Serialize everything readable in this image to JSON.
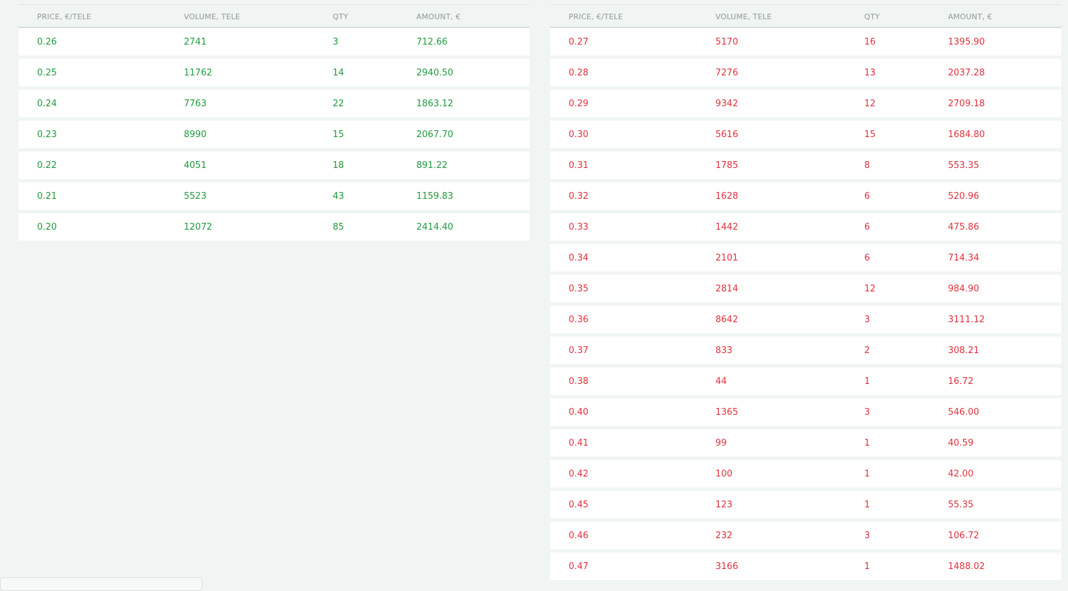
{
  "bids": {
    "columns": [
      "PRICE, €/TELE",
      "VOLUME, TELE",
      "QTY",
      "AMOUNT, €"
    ],
    "color": "#1f9a3d",
    "rows": [
      [
        "0.26",
        "2741",
        "3",
        "712.66"
      ],
      [
        "0.25",
        "11762",
        "14",
        "2940.50"
      ],
      [
        "0.24",
        "7763",
        "22",
        "1863.12"
      ],
      [
        "0.23",
        "8990",
        "15",
        "2067.70"
      ],
      [
        "0.22",
        "4051",
        "18",
        "891.22"
      ],
      [
        "0.21",
        "5523",
        "43",
        "1159.83"
      ],
      [
        "0.20",
        "12072",
        "85",
        "2414.40"
      ]
    ]
  },
  "asks": {
    "columns": [
      "PRICE, €/TELE",
      "VOLUME, TELE",
      "QTY",
      "AMOUNT, €"
    ],
    "color": "#e0303d",
    "rows": [
      [
        "0.27",
        "5170",
        "16",
        "1395.90"
      ],
      [
        "0.28",
        "7276",
        "13",
        "2037.28"
      ],
      [
        "0.29",
        "9342",
        "12",
        "2709.18"
      ],
      [
        "0.30",
        "5616",
        "15",
        "1684.80"
      ],
      [
        "0.31",
        "1785",
        "8",
        "553.35"
      ],
      [
        "0.32",
        "1628",
        "6",
        "520.96"
      ],
      [
        "0.33",
        "1442",
        "6",
        "475.86"
      ],
      [
        "0.34",
        "2101",
        "6",
        "714.34"
      ],
      [
        "0.35",
        "2814",
        "12",
        "984.90"
      ],
      [
        "0.36",
        "8642",
        "3",
        "3111.12"
      ],
      [
        "0.37",
        "833",
        "2",
        "308.21"
      ],
      [
        "0.38",
        "44",
        "1",
        "16.72"
      ],
      [
        "0.40",
        "1365",
        "3",
        "546.00"
      ],
      [
        "0.41",
        "99",
        "1",
        "40.59"
      ],
      [
        "0.42",
        "100",
        "1",
        "42.00"
      ],
      [
        "0.45",
        "123",
        "1",
        "55.35"
      ],
      [
        "0.46",
        "232",
        "3",
        "106.72"
      ],
      [
        "0.47",
        "3166",
        "1",
        "1488.02"
      ]
    ]
  }
}
